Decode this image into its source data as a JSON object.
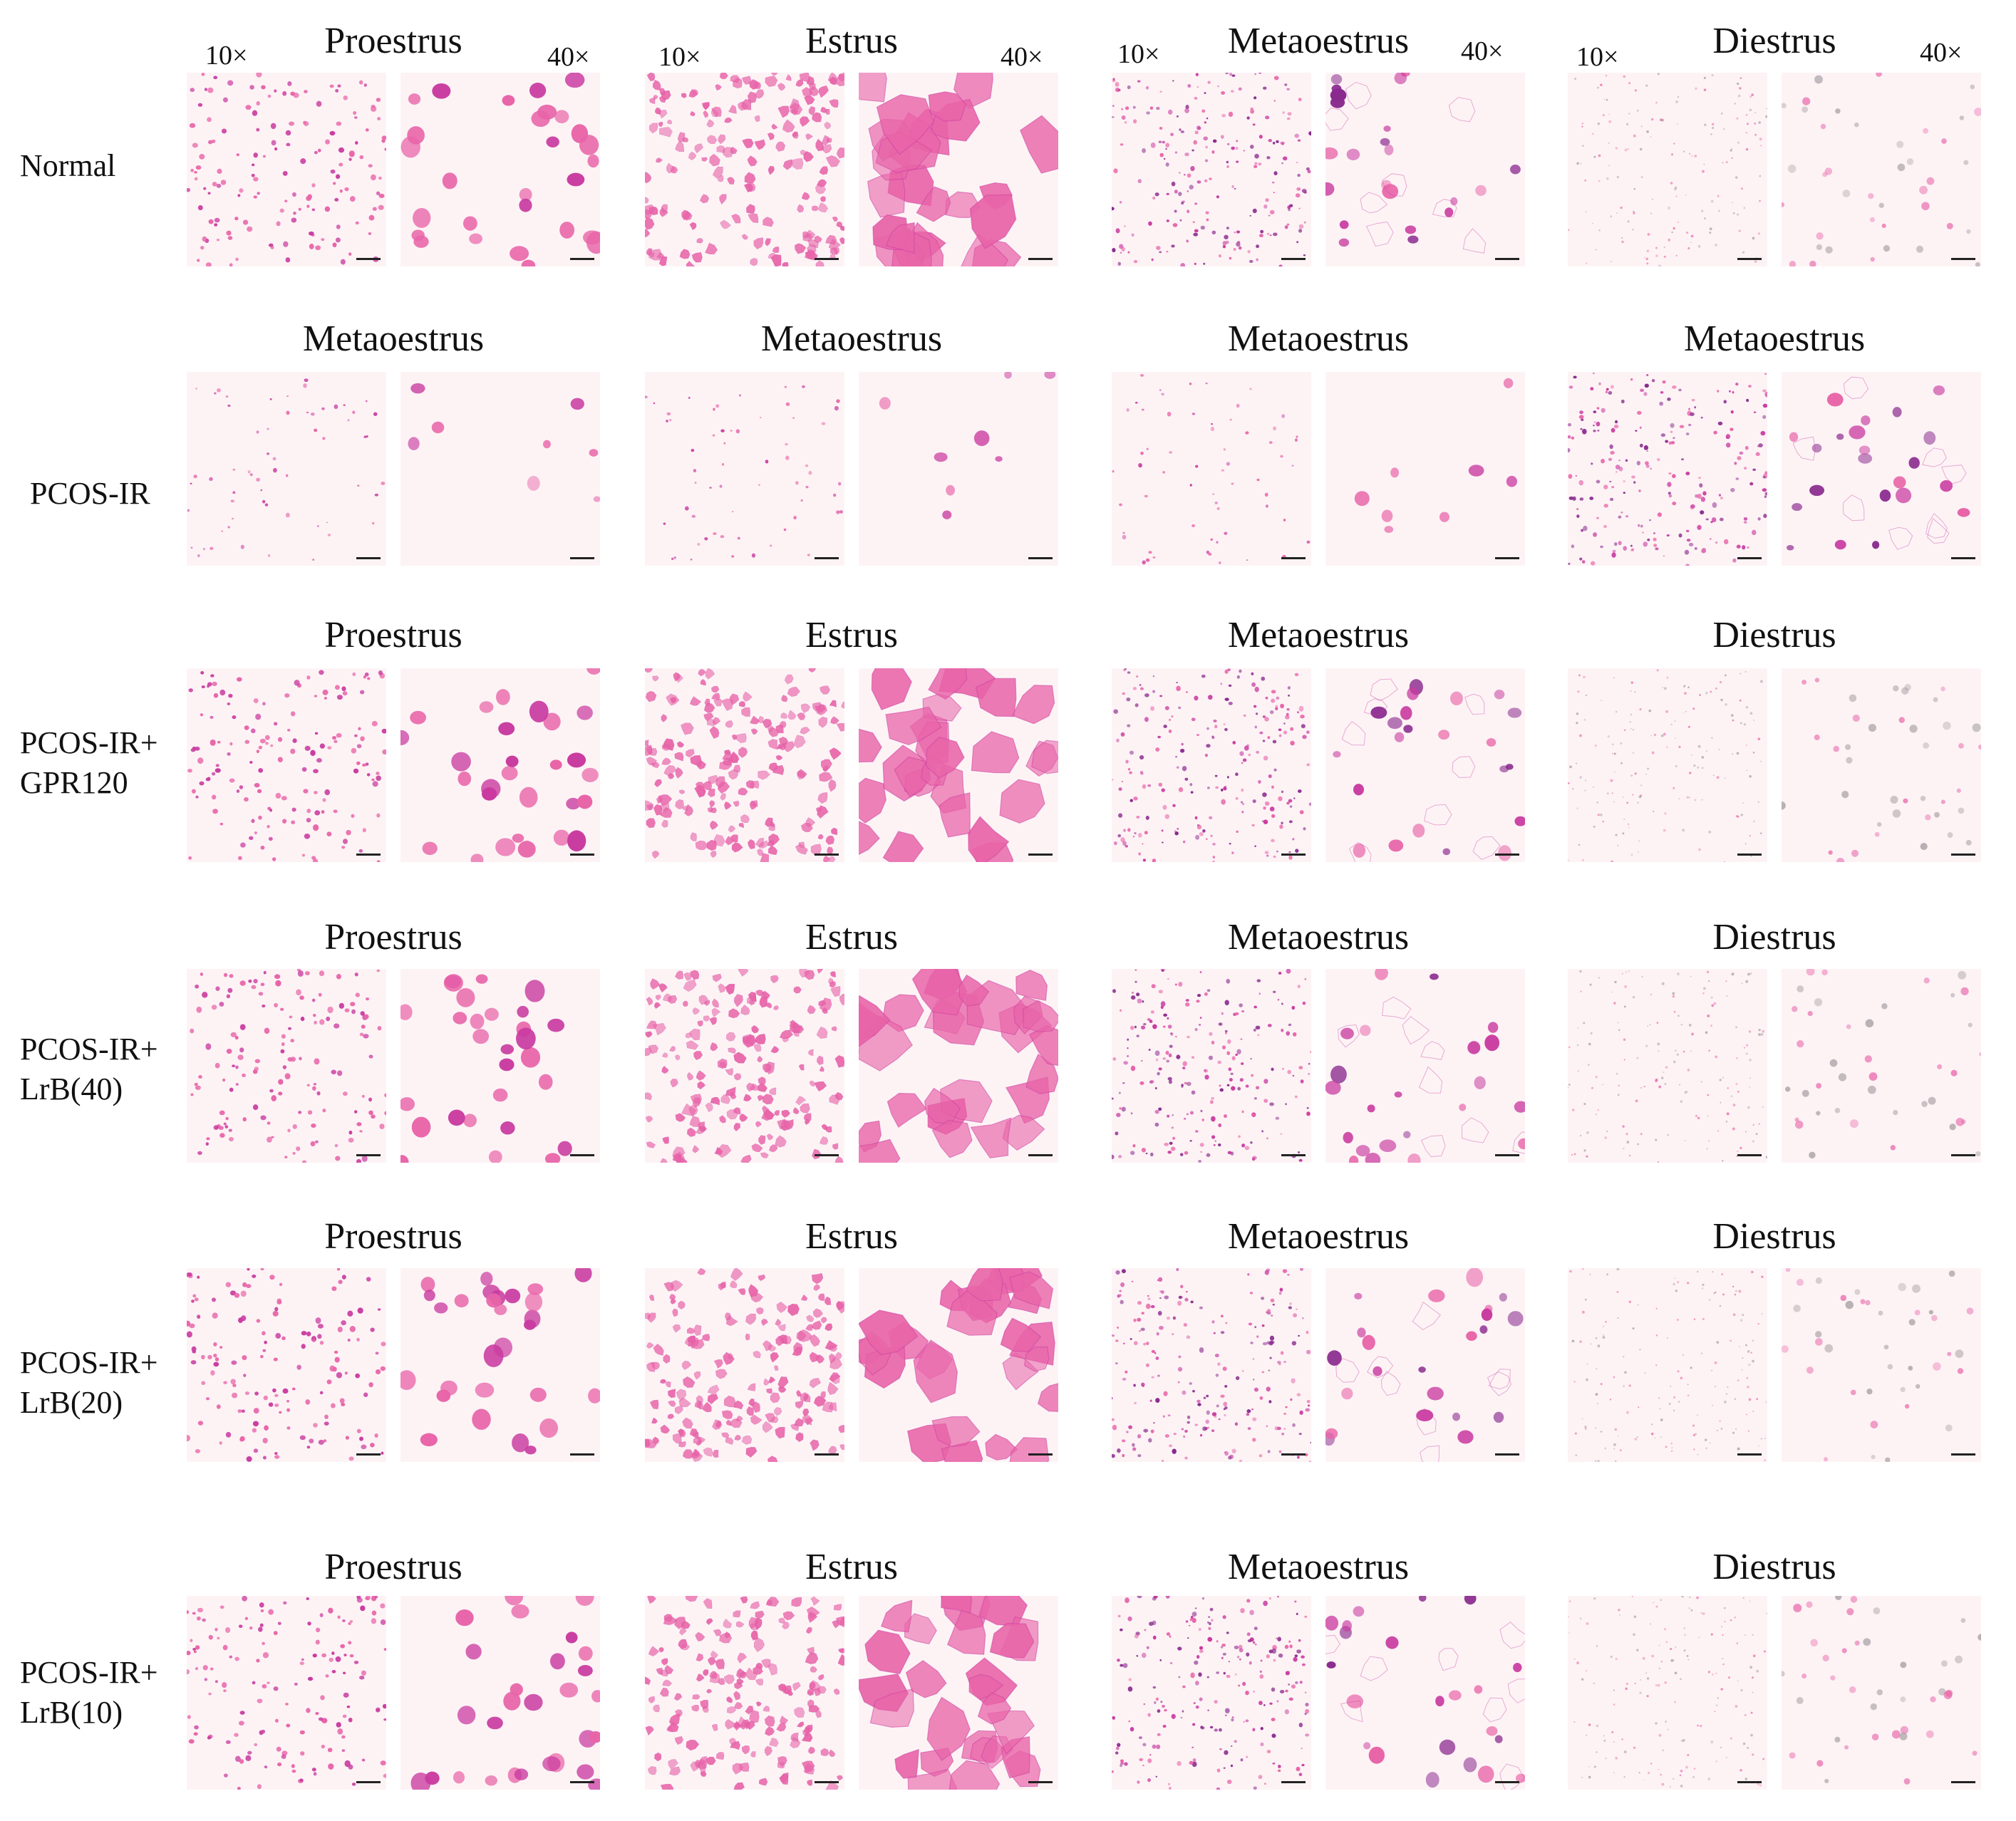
{
  "figure": {
    "magnification": {
      "low": "10×",
      "high": "40×"
    },
    "columns": [
      "Proestrus",
      "Estrus",
      "Metaoestrus",
      "Diestrus"
    ],
    "rows": [
      {
        "label": "Normal",
        "stages": [
          "Proestrus",
          "Estrus",
          "Metaoestrus",
          "Diestrus"
        ],
        "styles": [
          "pro",
          "est",
          "met",
          "di"
        ]
      },
      {
        "label": "PCOS-IR",
        "stages": [
          "Metaoestrus",
          "Metaoestrus",
          "Metaoestrus",
          "Metaoestrus"
        ],
        "styles": [
          "sparse",
          "sparse",
          "sparse",
          "met"
        ]
      },
      {
        "label": "PCOS-IR+\nGPR120",
        "stages": [
          "Proestrus",
          "Estrus",
          "Metaoestrus",
          "Diestrus"
        ],
        "styles": [
          "pro",
          "est",
          "met",
          "di"
        ]
      },
      {
        "label": "PCOS-IR+\nLrB(40)",
        "stages": [
          "Proestrus",
          "Estrus",
          "Metaoestrus",
          "Diestrus"
        ],
        "styles": [
          "pro",
          "est",
          "met",
          "di"
        ]
      },
      {
        "label": "PCOS-IR+\nLrB(20)",
        "stages": [
          "Proestrus",
          "Estrus",
          "Metaoestrus",
          "Diestrus"
        ],
        "styles": [
          "pro",
          "est",
          "met",
          "di"
        ]
      },
      {
        "label": "PCOS-IR+\nLrB(10)",
        "stages": [
          "Proestrus",
          "Estrus",
          "Metaoestrus",
          "Diestrus"
        ],
        "styles": [
          "pro",
          "est",
          "met",
          "di"
        ]
      }
    ]
  },
  "colors": {
    "panel_bg": "#fdf3f5",
    "stain_pink": "#e864a8",
    "stain_magenta": "#c93ba0",
    "stain_purple": "#8a2a8e",
    "debris_grey": "#a09a9e",
    "scale_bar": "#222222"
  }
}
